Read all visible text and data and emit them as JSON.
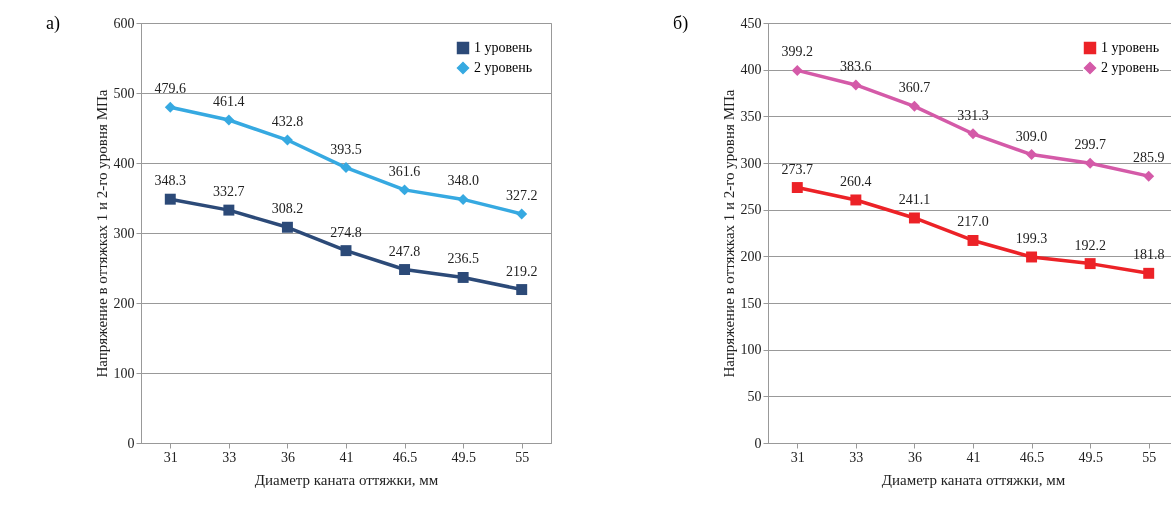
{
  "chart_data": [
    {
      "type": "line",
      "annotations": [
        "а)"
      ],
      "xlabel": "Диаметр каната оттяжки, мм",
      "ylabel": "Напряжение в оттяжках 1 и 2-го уровня МПа",
      "categories": [
        "31",
        "33",
        "36",
        "41",
        "46.5",
        "49.5",
        "55"
      ],
      "ylim": [
        0,
        600
      ],
      "yticks": [
        0,
        100,
        200,
        300,
        400,
        500,
        600
      ],
      "grid": "y",
      "legend": "top right",
      "series": [
        {
          "name": "1 уровень",
          "color": "#2c4a78",
          "marker": "square",
          "values": [
            348.3,
            332.7,
            308.2,
            274.8,
            247.8,
            236.5,
            219.2
          ],
          "value_labels": [
            "348.3",
            "332.7",
            "308.2",
            "274.8",
            "247.8",
            "236.5",
            "219.2"
          ]
        },
        {
          "name": "2 уровень",
          "color": "#36a9e1",
          "marker": "diamond",
          "values": [
            479.6,
            461.4,
            432.8,
            393.5,
            361.6,
            348.0,
            327.2
          ],
          "value_labels": [
            "479.6",
            "461.4",
            "432.8",
            "393.5",
            "361.6",
            "348.0",
            "327.2"
          ]
        }
      ]
    },
    {
      "type": "line",
      "annotations": [
        "б)"
      ],
      "xlabel": "Диаметр каната оттяжки, мм",
      "ylabel": "Напряжение в оттяжках 1 и 2-го уровня МПа",
      "categories": [
        "31",
        "33",
        "36",
        "41",
        "46.5",
        "49.5",
        "55"
      ],
      "ylim": [
        0,
        450
      ],
      "yticks": [
        0,
        50,
        100,
        150,
        200,
        250,
        300,
        350,
        400,
        450
      ],
      "grid": "y",
      "legend": "top right",
      "series": [
        {
          "name": "1 уровень",
          "color": "#ec2227",
          "marker": "square",
          "values": [
            273.7,
            260.4,
            241.1,
            217.0,
            199.3,
            192.2,
            181.8
          ],
          "value_labels": [
            "273.7",
            "260.4",
            "241.1",
            "217.0",
            "199.3",
            "192.2",
            "181.8"
          ]
        },
        {
          "name": "2 уровень",
          "color": "#d45aa8",
          "marker": "diamond",
          "values": [
            399.2,
            383.6,
            360.7,
            331.3,
            309.0,
            299.7,
            285.9
          ],
          "value_labels": [
            "399.2",
            "383.6",
            "360.7",
            "331.3",
            "309.0",
            "299.7",
            "285.9"
          ]
        }
      ]
    }
  ]
}
